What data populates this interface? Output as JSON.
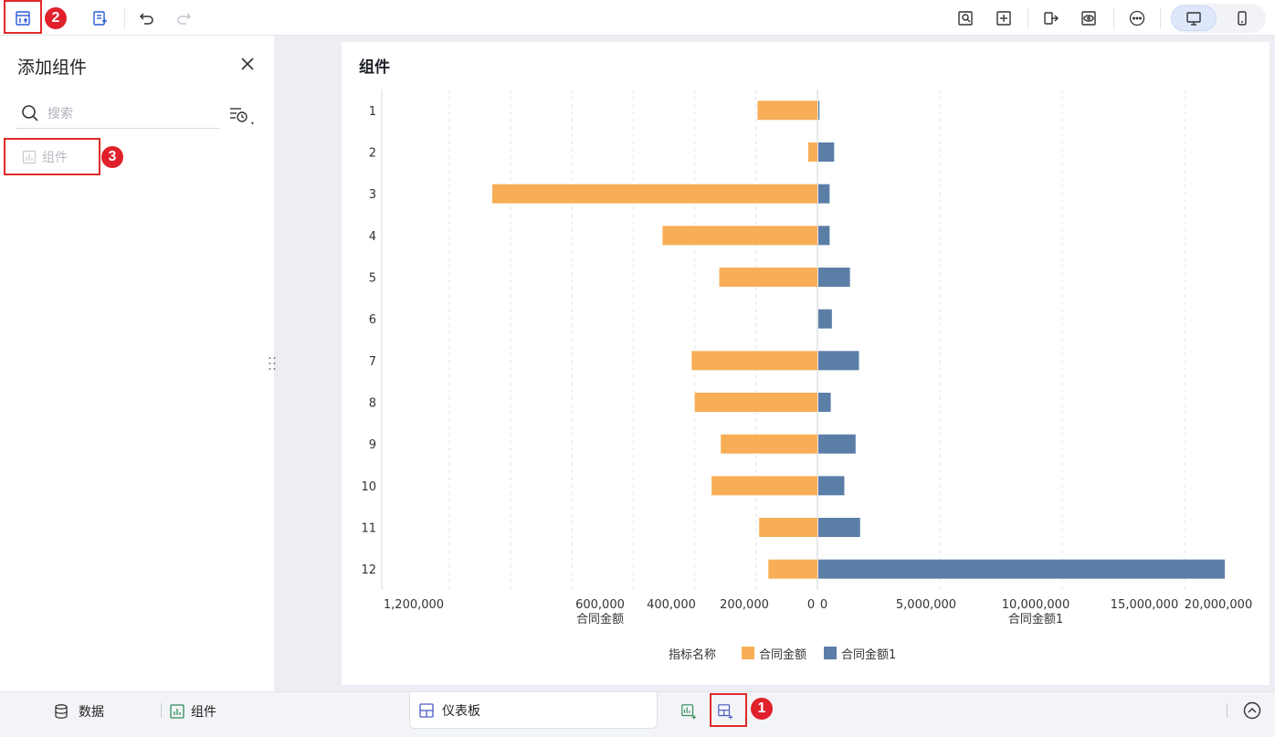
{
  "toolbar": {
    "buttons": [
      "add-component-icon",
      "add-filter-icon",
      "undo-icon",
      "redo-icon",
      "preview-icon",
      "layout-icon",
      "export-icon",
      "view-icon",
      "more-icon",
      "desktop-icon",
      "mobile-icon"
    ],
    "badge_2": "2"
  },
  "left_panel": {
    "title": "添加组件",
    "search_placeholder": "搜索",
    "component_item": "组件",
    "badge_3": "3"
  },
  "card": {
    "title": "组件"
  },
  "chart_data": {
    "type": "bar",
    "orientation": "horizontal-butterfly",
    "categories": [
      "1",
      "2",
      "3",
      "4",
      "5",
      "6",
      "7",
      "8",
      "9",
      "10",
      "11",
      "12"
    ],
    "legend_title": "指标名称",
    "series": [
      {
        "name": "合同金额",
        "color": "#F8AE56",
        "values": [
          195000,
          30000,
          1060000,
          505000,
          320000,
          0,
          410000,
          400000,
          315000,
          345000,
          190000,
          160000
        ]
      },
      {
        "name": "合同金额1",
        "color": "#5B7EA7",
        "values": [
          50000,
          700000,
          500000,
          500000,
          1400000,
          600000,
          1800000,
          550000,
          1650000,
          1150000,
          1850000,
          18000000
        ]
      }
    ],
    "left_axis": {
      "label": "合同金额",
      "ticks": [
        "1,200,000",
        "600,000",
        "400,000",
        "200,000",
        "0"
      ]
    },
    "right_axis": {
      "label": "合同金额1",
      "ticks": [
        "0",
        "5,000,000",
        "10,000,000",
        "15,000,000",
        "20,000,000"
      ]
    },
    "legend_position": "bottom-center",
    "grid": true
  },
  "bottom_bar": {
    "data_label": "数据",
    "component_label": "组件",
    "dashboard_tab": "仪表板",
    "badge_1": "1"
  }
}
